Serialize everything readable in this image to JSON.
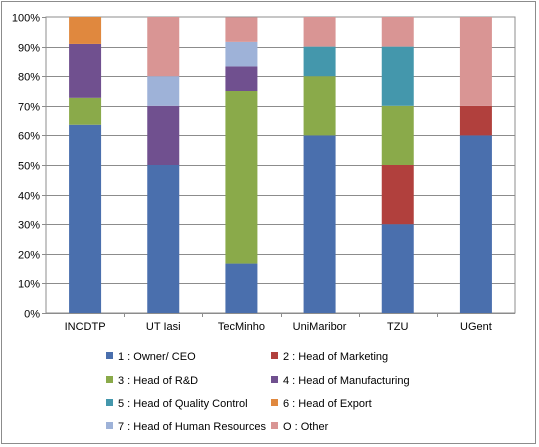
{
  "chart_data": {
    "type": "bar",
    "stacked": true,
    "categories": [
      "INCDTP",
      "UT Iasi",
      "TecMinho",
      "UniMaribor",
      "TZU",
      "UGent"
    ],
    "ylim": [
      0,
      100
    ],
    "yticks": [
      "0%",
      "10%",
      "20%",
      "30%",
      "40%",
      "50%",
      "60%",
      "70%",
      "80%",
      "90%",
      "100%"
    ],
    "grid": true,
    "legend_position": "bottom",
    "series": [
      {
        "name": "1 : Owner/ CEO",
        "color": "#4a6fad",
        "values": [
          63.6,
          50,
          16.7,
          60,
          30,
          60
        ]
      },
      {
        "name": "2 : Head of Marketing",
        "color": "#b1403d",
        "values": [
          0,
          0,
          0,
          0,
          20,
          10
        ]
      },
      {
        "name": "3 : Head of R&D",
        "color": "#8aaa4a",
        "values": [
          9.1,
          0,
          58.3,
          20,
          20,
          0
        ]
      },
      {
        "name": "4 : Head of Manufacturing",
        "color": "#70508f",
        "values": [
          18.2,
          20,
          8.3,
          0,
          0,
          0
        ]
      },
      {
        "name": "5 : Head of Quality Control",
        "color": "#4497ac",
        "values": [
          0,
          0,
          0,
          10,
          20,
          0
        ]
      },
      {
        "name": "6 : Head of Export",
        "color": "#e0883e",
        "values": [
          9.1,
          0,
          0,
          0,
          0,
          0
        ]
      },
      {
        "name": "7 : Head of Human Resources",
        "color": "#9eb2d8",
        "values": [
          0,
          10,
          8.3,
          0,
          0,
          0
        ]
      },
      {
        "name": "O : Other",
        "color": "#d99594",
        "values": [
          0,
          20,
          8.3,
          10,
          10,
          30
        ]
      }
    ]
  }
}
